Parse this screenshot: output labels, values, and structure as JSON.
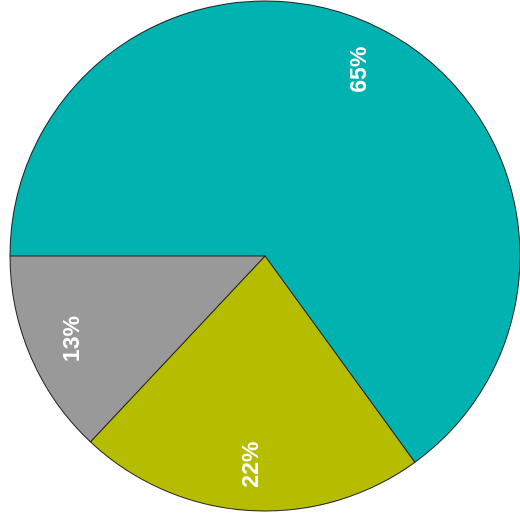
{
  "chart_data": {
    "type": "pie",
    "values": [
      65,
      22,
      13
    ],
    "value_labels": [
      "65%",
      "22%",
      "13%"
    ],
    "colors": [
      "#00b2b0",
      "#b6bd00",
      "#999999"
    ]
  }
}
